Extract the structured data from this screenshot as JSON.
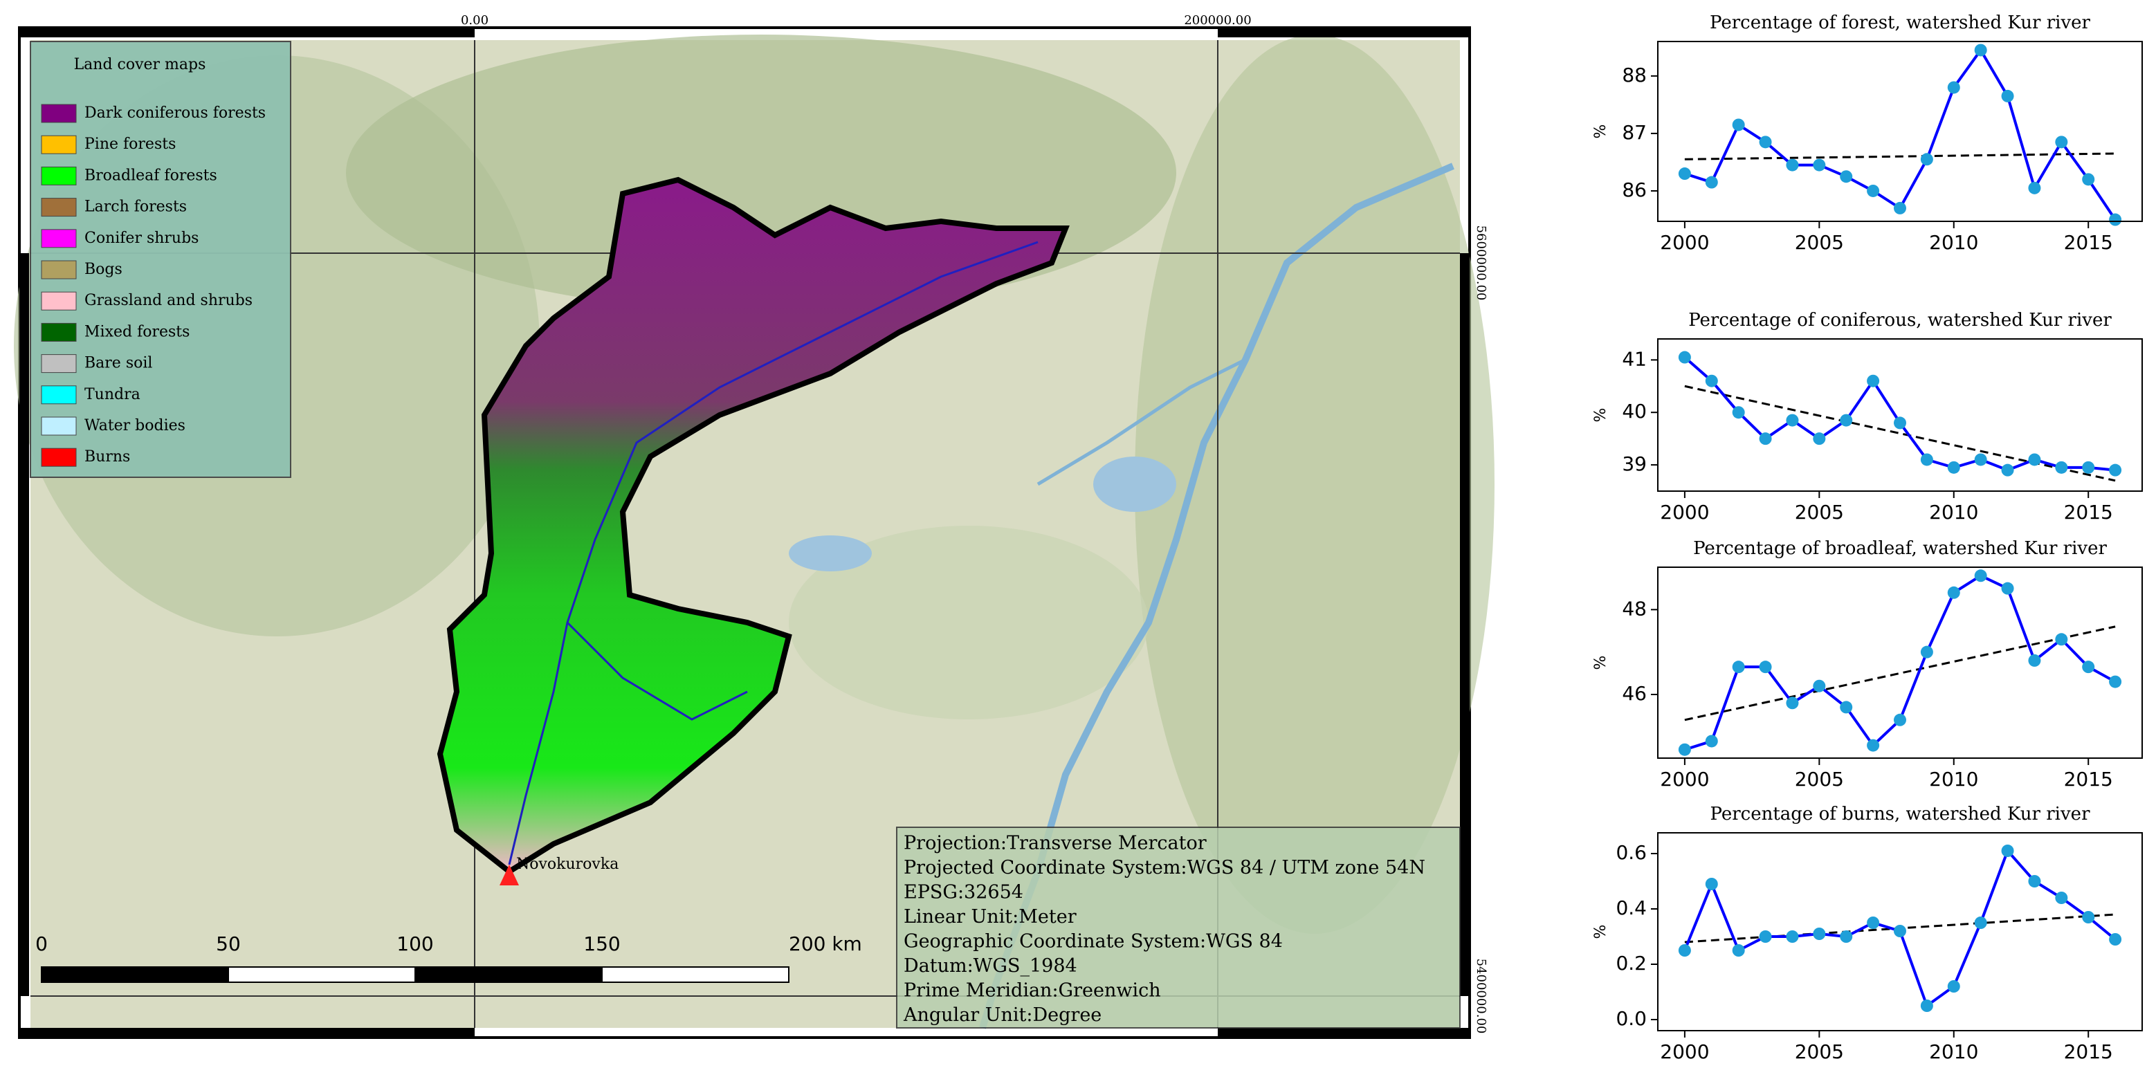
{
  "map": {
    "legend_title": "Land cover maps",
    "legend": [
      {
        "label": "Dark coniferous forests",
        "color": "#800080"
      },
      {
        "label": "Pine forests",
        "color": "#ffc000"
      },
      {
        "label": "Broadleaf forests",
        "color": "#00ff00"
      },
      {
        "label": "Larch forests",
        "color": "#a0703a"
      },
      {
        "label": "Conifer shrubs",
        "color": "#ff00ff"
      },
      {
        "label": "Bogs",
        "color": "#b0a060"
      },
      {
        "label": "Grassland and shrubs",
        "color": "#ffc0cb"
      },
      {
        "label": "Mixed forests",
        "color": "#006400"
      },
      {
        "label": "Bare soil",
        "color": "#c0c0c0"
      },
      {
        "label": "Tundra",
        "color": "#00ffff"
      },
      {
        "label": "Water bodies",
        "color": "#bfefff"
      },
      {
        "label": "Burns",
        "color": "#ff0000"
      }
    ],
    "coordinates": {
      "top": [
        "0.00",
        "200000.00"
      ],
      "right": [
        "5600000.00",
        "5400000.00"
      ]
    },
    "scale_bar": [
      "0",
      "50",
      "100",
      "150",
      "200 km"
    ],
    "place": "Novokurovka",
    "info": [
      "Projection:Transverse Mercator",
      "Projected Coordinate System:WGS 84 / UTM zone 54N",
      "EPSG:32654",
      "Linear Unit:Meter",
      "Geographic Coordinate System:WGS 84",
      "Datum:WGS_1984",
      "Prime Meridian:Greenwich",
      "Angular Unit:Degree"
    ]
  },
  "chart_data": [
    {
      "type": "line",
      "title": "Percentage of forest, watershed Kur river",
      "y_label": "%",
      "x": [
        2000,
        2001,
        2002,
        2003,
        2004,
        2005,
        2006,
        2007,
        2008,
        2009,
        2010,
        2011,
        2012,
        2013,
        2014,
        2015,
        2016
      ],
      "series": [
        {
          "color": "#0000ff",
          "marker_color": "#1f9fd8",
          "values": [
            86.3,
            86.15,
            87.15,
            86.85,
            86.45,
            86.45,
            86.25,
            86.0,
            85.7,
            86.55,
            87.8,
            88.45,
            87.65,
            86.05,
            86.85,
            86.2,
            85.5
          ]
        }
      ],
      "trend": {
        "color": "#000000",
        "x": [
          2000,
          2016
        ],
        "values": [
          86.55,
          86.65
        ]
      },
      "xlim": [
        1999,
        2017
      ],
      "xticks": [
        2000,
        2005,
        2010,
        2015
      ],
      "ylim": [
        85.47,
        88.6
      ],
      "yticks": [
        86,
        87,
        88
      ]
    },
    {
      "type": "line",
      "title": "Percentage of coniferous, watershed Kur river",
      "y_label": "%",
      "x": [
        2000,
        2001,
        2002,
        2003,
        2004,
        2005,
        2006,
        2007,
        2008,
        2009,
        2010,
        2011,
        2012,
        2013,
        2014,
        2015,
        2016
      ],
      "series": [
        {
          "color": "#0000ff",
          "marker_color": "#1f9fd8",
          "values": [
            41.05,
            40.6,
            40.0,
            39.5,
            39.85,
            39.5,
            39.85,
            40.6,
            39.8,
            39.1,
            38.95,
            39.1,
            38.9,
            39.1,
            38.95,
            38.95,
            38.9
          ]
        }
      ],
      "trend": {
        "color": "#000000",
        "x": [
          2000,
          2016
        ],
        "values": [
          40.5,
          38.7
        ]
      },
      "xlim": [
        1999,
        2017
      ],
      "xticks": [
        2000,
        2005,
        2010,
        2015
      ],
      "ylim": [
        38.5,
        41.4
      ],
      "yticks": [
        39,
        40,
        41
      ]
    },
    {
      "type": "line",
      "title": "Percentage of broadleaf, watershed Kur river",
      "y_label": "%",
      "x": [
        2000,
        2001,
        2002,
        2003,
        2004,
        2005,
        2006,
        2007,
        2008,
        2009,
        2010,
        2011,
        2012,
        2013,
        2014,
        2015,
        2016
      ],
      "series": [
        {
          "color": "#0000ff",
          "marker_color": "#1f9fd8",
          "values": [
            44.7,
            44.9,
            46.65,
            46.65,
            45.8,
            46.2,
            45.7,
            44.8,
            45.4,
            47.0,
            48.4,
            48.8,
            48.5,
            46.8,
            47.3,
            46.65,
            46.3
          ]
        }
      ],
      "trend": {
        "color": "#000000",
        "x": [
          2000,
          2016
        ],
        "values": [
          45.4,
          47.6
        ]
      },
      "xlim": [
        1999,
        2017
      ],
      "xticks": [
        2000,
        2005,
        2010,
        2015
      ],
      "ylim": [
        44.5,
        49.0
      ],
      "yticks": [
        46,
        48
      ]
    },
    {
      "type": "line",
      "title": "Percentage of burns, watershed Kur river",
      "y_label": "%",
      "x": [
        2000,
        2001,
        2002,
        2003,
        2004,
        2005,
        2006,
        2007,
        2008,
        2009,
        2010,
        2011,
        2012,
        2013,
        2014,
        2015,
        2016
      ],
      "series": [
        {
          "color": "#0000ff",
          "marker_color": "#1f9fd8",
          "values": [
            0.25,
            0.49,
            0.25,
            0.3,
            0.3,
            0.31,
            0.3,
            0.35,
            0.32,
            0.05,
            0.12,
            0.35,
            0.61,
            0.5,
            0.44,
            0.37,
            0.29
          ]
        }
      ],
      "trend": {
        "color": "#000000",
        "x": [
          2000,
          2016
        ],
        "values": [
          0.28,
          0.38
        ]
      },
      "xlim": [
        1999,
        2017
      ],
      "xticks": [
        2000,
        2005,
        2010,
        2015
      ],
      "ylim": [
        -0.04,
        0.675
      ],
      "yticks": [
        {
          "value": 0,
          "label": "0.0"
        },
        0.2,
        0.4,
        0.6
      ]
    }
  ]
}
